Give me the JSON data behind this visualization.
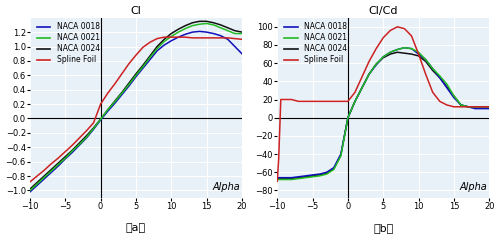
{
  "panel_a": {
    "title": "Cl",
    "xlabel": "Alpha",
    "xlim": [
      -10,
      20
    ],
    "ylim": [
      -1.1,
      1.4
    ],
    "xticks": [
      -10,
      -5,
      0,
      5,
      10,
      15,
      20
    ],
    "yticks": [
      -1.0,
      -0.8,
      -0.6,
      -0.4,
      -0.2,
      0.0,
      0.2,
      0.4,
      0.6,
      0.8,
      1.0,
      1.2
    ],
    "series": {
      "NACA 0018": {
        "color": "#1111bb",
        "alpha_pts": [
          -10,
          -9,
          -8,
          -7,
          -6,
          -5,
          -4,
          -3,
          -2,
          -1,
          0,
          1,
          2,
          3,
          4,
          5,
          6,
          7,
          8,
          9,
          10,
          11,
          12,
          13,
          14,
          15,
          16,
          17,
          18,
          19,
          20
        ],
        "cl_pts": [
          -1.02,
          -0.93,
          -0.84,
          -0.75,
          -0.66,
          -0.56,
          -0.47,
          -0.37,
          -0.27,
          -0.15,
          -0.02,
          0.1,
          0.21,
          0.33,
          0.45,
          0.58,
          0.7,
          0.82,
          0.94,
          1.02,
          1.08,
          1.13,
          1.17,
          1.2,
          1.21,
          1.2,
          1.18,
          1.15,
          1.1,
          1.0,
          0.9
        ]
      },
      "NACA 0021": {
        "color": "#22bb22",
        "alpha_pts": [
          -10,
          -9,
          -8,
          -7,
          -6,
          -5,
          -4,
          -3,
          -2,
          -1,
          0,
          1,
          2,
          3,
          4,
          5,
          6,
          7,
          8,
          9,
          10,
          11,
          12,
          13,
          14,
          15,
          16,
          17,
          18,
          19,
          20
        ],
        "cl_pts": [
          -1.0,
          -0.91,
          -0.82,
          -0.73,
          -0.64,
          -0.55,
          -0.45,
          -0.36,
          -0.26,
          -0.14,
          -0.01,
          0.12,
          0.23,
          0.35,
          0.47,
          0.6,
          0.72,
          0.85,
          0.97,
          1.07,
          1.14,
          1.2,
          1.25,
          1.29,
          1.31,
          1.32,
          1.3,
          1.26,
          1.22,
          1.18,
          1.18
        ]
      },
      "NACA 0024": {
        "color": "#111111",
        "alpha_pts": [
          -10,
          -9,
          -8,
          -7,
          -6,
          -5,
          -4,
          -3,
          -2,
          -1,
          0,
          1,
          2,
          3,
          4,
          5,
          6,
          7,
          8,
          9,
          10,
          11,
          12,
          13,
          14,
          15,
          16,
          17,
          18,
          19,
          20
        ],
        "cl_pts": [
          -0.98,
          -0.89,
          -0.8,
          -0.71,
          -0.62,
          -0.53,
          -0.44,
          -0.34,
          -0.24,
          -0.13,
          -0.01,
          0.12,
          0.24,
          0.36,
          0.49,
          0.62,
          0.74,
          0.87,
          1.0,
          1.1,
          1.18,
          1.24,
          1.29,
          1.33,
          1.35,
          1.35,
          1.33,
          1.3,
          1.26,
          1.22,
          1.2
        ]
      },
      "Spline Foil": {
        "color": "#cc2222",
        "alpha_pts": [
          -10,
          -9,
          -8,
          -7,
          -6,
          -5,
          -4,
          -3,
          -2,
          -1,
          0,
          1,
          2,
          3,
          4,
          5,
          6,
          7,
          8,
          9,
          10,
          11,
          12,
          13,
          14,
          15,
          16,
          17,
          18,
          19,
          20
        ],
        "cl_pts": [
          -0.88,
          -0.8,
          -0.72,
          -0.63,
          -0.55,
          -0.46,
          -0.37,
          -0.27,
          -0.17,
          -0.06,
          0.2,
          0.35,
          0.48,
          0.62,
          0.76,
          0.88,
          0.99,
          1.06,
          1.11,
          1.13,
          1.13,
          1.13,
          1.13,
          1.12,
          1.12,
          1.12,
          1.12,
          1.12,
          1.12,
          1.11,
          1.1
        ]
      }
    }
  },
  "panel_b": {
    "title": "Cl/Cd",
    "xlabel": "Alpha",
    "xlim": [
      -10,
      20
    ],
    "ylim": [
      -88,
      110
    ],
    "xticks": [
      -10,
      -5,
      0,
      5,
      10,
      15,
      20
    ],
    "yticks": [
      -80,
      -60,
      -40,
      -20,
      0,
      20,
      40,
      60,
      80,
      100
    ],
    "series": {
      "NACA 0018": {
        "color": "#1111bb",
        "alpha_pts": [
          -10,
          -9,
          -8,
          -7,
          -6,
          -5,
          -4,
          -3,
          -2,
          -1,
          0,
          1,
          2,
          3,
          4,
          5,
          6,
          7,
          8,
          9,
          10,
          11,
          12,
          13,
          14,
          15,
          16,
          17,
          18,
          19,
          20
        ],
        "cl_pts": [
          -66,
          -66,
          -66,
          -65,
          -64,
          -63,
          -62,
          -60,
          -55,
          -40,
          0,
          18,
          33,
          48,
          58,
          67,
          72,
          75,
          77,
          76,
          70,
          64,
          54,
          44,
          33,
          22,
          14,
          12,
          10,
          10,
          10
        ]
      },
      "NACA 0021": {
        "color": "#22bb22",
        "alpha_pts": [
          -10,
          -9,
          -8,
          -7,
          -6,
          -5,
          -4,
          -3,
          -2,
          -1,
          0,
          1,
          2,
          3,
          4,
          5,
          6,
          7,
          8,
          9,
          10,
          11,
          12,
          13,
          14,
          15,
          16,
          17,
          18,
          19,
          20
        ],
        "cl_pts": [
          -68,
          -68,
          -68,
          -67,
          -66,
          -65,
          -64,
          -62,
          -57,
          -42,
          0,
          18,
          33,
          48,
          59,
          67,
          72,
          75,
          77,
          76,
          72,
          64,
          54,
          46,
          37,
          24,
          14,
          12,
          12,
          12,
          12
        ]
      },
      "NACA 0024": {
        "color": "#111111",
        "alpha_pts": [
          -10,
          -9,
          -8,
          -7,
          -6,
          -5,
          -4,
          -3,
          -2,
          -1,
          0,
          1,
          2,
          3,
          4,
          5,
          6,
          7,
          8,
          9,
          10,
          11,
          12,
          13,
          14,
          15,
          16,
          17,
          18,
          19,
          20
        ],
        "cl_pts": [
          -67,
          -67,
          -67,
          -66,
          -65,
          -64,
          -63,
          -61,
          -56,
          -41,
          0,
          18,
          33,
          48,
          59,
          66,
          70,
          72,
          71,
          70,
          68,
          62,
          52,
          44,
          34,
          24,
          14,
          12,
          12,
          12,
          12
        ]
      },
      "Spline Foil": {
        "color": "#cc2222",
        "alpha_pts": [
          -10,
          -9.8,
          -9.5,
          -9.0,
          -8,
          -7,
          -6,
          -5,
          -4,
          -3,
          -2,
          -1,
          0,
          1,
          2,
          3,
          4,
          5,
          6,
          7,
          8,
          9,
          10,
          11,
          12,
          13,
          14,
          15,
          16,
          17,
          18,
          19,
          20
        ],
        "cl_pts": [
          -70,
          -45,
          20,
          20,
          20,
          18,
          18,
          18,
          18,
          18,
          18,
          18,
          18,
          28,
          45,
          62,
          76,
          88,
          96,
          100,
          98,
          90,
          70,
          48,
          28,
          18,
          14,
          12,
          12,
          12,
          12,
          12,
          12
        ]
      }
    }
  },
  "label_fontsize": 7,
  "tick_fontsize": 6,
  "legend_fontsize": 5.5,
  "background_color": "#ffffff",
  "grid_color": "#c8daea",
  "subtitle_a": "（a）",
  "subtitle_b": "（b）"
}
